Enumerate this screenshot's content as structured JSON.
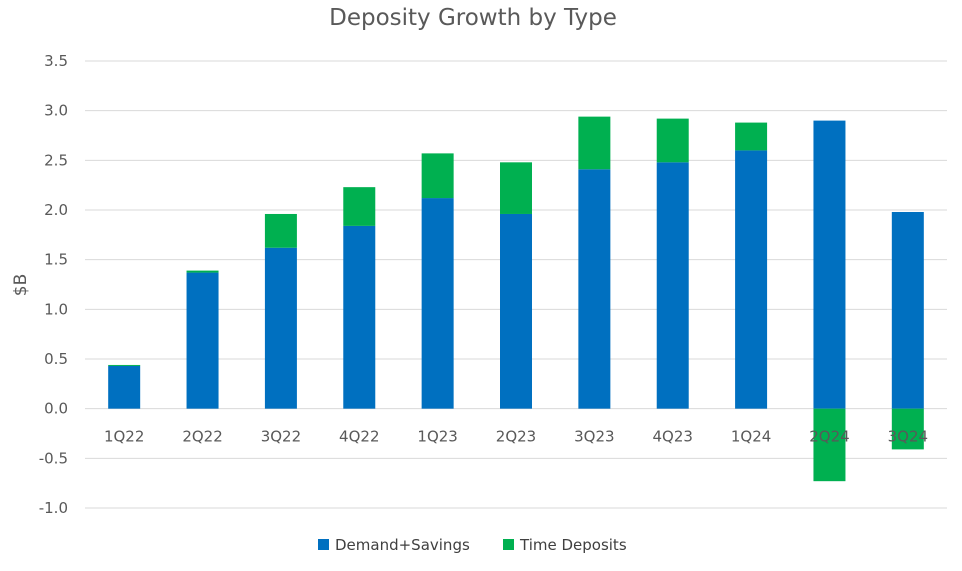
{
  "chart_data": {
    "type": "bar",
    "stacked": true,
    "title": "Deposity Growth by Type",
    "ylabel": "$B",
    "xlabel": "",
    "ylim": [
      -1.0,
      3.5
    ],
    "yticks": [
      "3.5",
      "3.0",
      "2.5",
      "2.0",
      "1.5",
      "1.0",
      "0.5",
      "0.0",
      "-0.5",
      "-1.0"
    ],
    "grid": true,
    "legend_position": "bottom",
    "categories": [
      "1Q22",
      "2Q22",
      "3Q22",
      "4Q22",
      "1Q23",
      "2Q23",
      "3Q23",
      "4Q23",
      "1Q24",
      "2Q24",
      "3Q24"
    ],
    "series": [
      {
        "name": "Demand+Savings",
        "color": "#0070C0",
        "values": [
          0.43,
          1.37,
          1.62,
          1.84,
          2.12,
          1.96,
          2.41,
          2.48,
          2.6,
          2.9,
          1.98
        ]
      },
      {
        "name": "Time Deposits",
        "color": "#00B050",
        "values": [
          0.01,
          0.02,
          0.34,
          0.39,
          0.45,
          0.52,
          0.53,
          0.44,
          0.28,
          -0.73,
          -0.41
        ]
      }
    ]
  }
}
